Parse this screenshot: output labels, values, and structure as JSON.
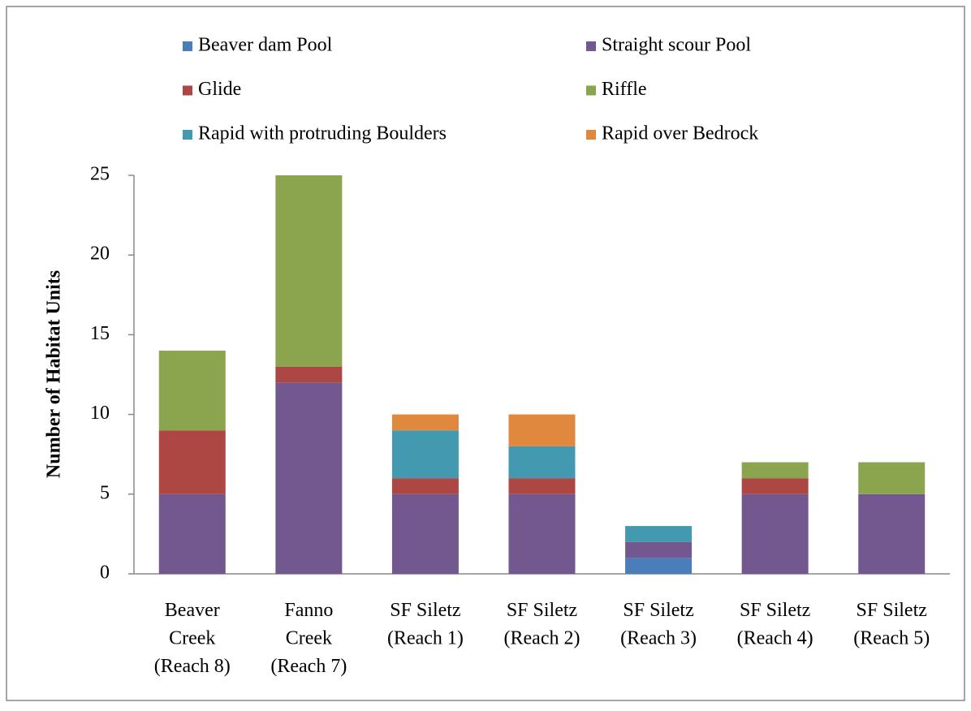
{
  "chart_data": {
    "type": "stacked_bar",
    "y_label": "Number of Habitat Units",
    "categories": [
      [
        "Beaver",
        "Creek",
        "(Reach 8)"
      ],
      [
        "Fanno",
        "Creek",
        "(Reach 7)"
      ],
      [
        "SF Siletz",
        "(Reach 1)"
      ],
      [
        "SF Siletz",
        "(Reach 2)"
      ],
      [
        "SF Siletz",
        "(Reach 3)"
      ],
      [
        "SF Siletz",
        "(Reach 4)"
      ],
      [
        "SF Siletz",
        "(Reach 5)"
      ]
    ],
    "series": [
      {
        "name": "Beaver dam Pool",
        "color": "#4a7ebb",
        "values": [
          0,
          0,
          0,
          0,
          1,
          0,
          0
        ]
      },
      {
        "name": "Straight scour Pool",
        "color": "#72588f",
        "values": [
          5,
          12,
          5,
          5,
          1,
          5,
          5
        ]
      },
      {
        "name": "Glide",
        "color": "#ad4744",
        "values": [
          4,
          1,
          1,
          1,
          0,
          1,
          0
        ]
      },
      {
        "name": "Riffle",
        "color": "#8aa54e",
        "values": [
          5,
          12,
          0,
          0,
          0,
          1,
          2
        ]
      },
      {
        "name": "Rapid with protruding Boulders",
        "color": "#4299b0",
        "values": [
          0,
          0,
          3,
          2,
          1,
          0,
          0
        ]
      },
      {
        "name": "Rapid over Bedrock",
        "color": "#e0883e",
        "values": [
          0,
          0,
          1,
          2,
          0,
          0,
          0
        ]
      }
    ],
    "ylim": [
      0,
      25
    ],
    "yticks": [
      0,
      5,
      10,
      15,
      20,
      25
    ],
    "grid": false,
    "legend": "top"
  }
}
